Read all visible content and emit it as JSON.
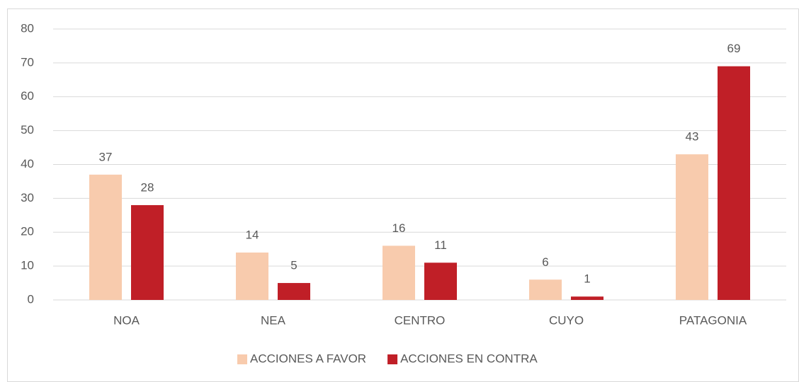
{
  "chart_data": {
    "type": "bar",
    "categories": [
      "NOA",
      "NEA",
      "CENTRO",
      "CUYO",
      "PATAGONIA"
    ],
    "series": [
      {
        "name": "ACCIONES A FAVOR",
        "color": "#f8cbad",
        "values": [
          37,
          14,
          16,
          6,
          43
        ]
      },
      {
        "name": "ACCIONES EN CONTRA",
        "color": "#c01f27",
        "values": [
          28,
          5,
          11,
          1,
          69
        ]
      }
    ],
    "ylim": [
      0,
      80
    ],
    "yticks": [
      0,
      10,
      20,
      30,
      40,
      50,
      60,
      70,
      80
    ],
    "grid": true,
    "legend": "bottom"
  }
}
